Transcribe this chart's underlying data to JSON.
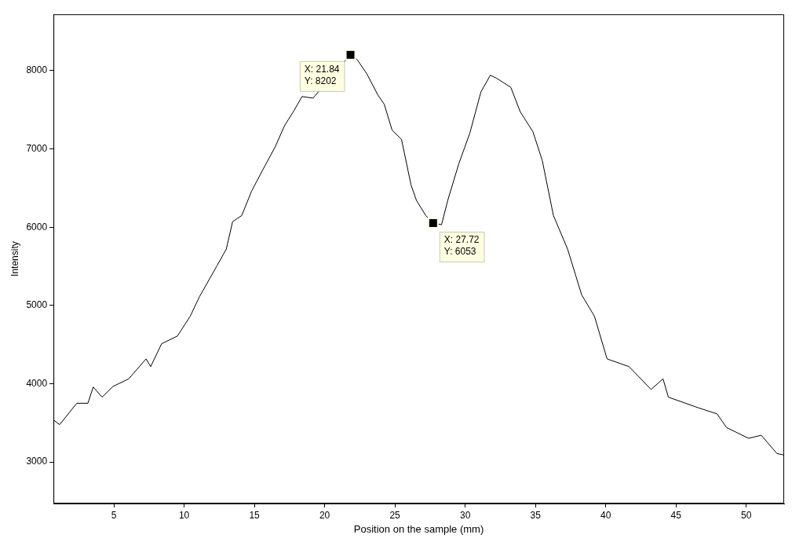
{
  "chart_data": {
    "type": "line",
    "xlabel": "Position on the sample (mm)",
    "ylabel": "Intensity",
    "xlim": [
      0.7,
      52.7
    ],
    "ylim": [
      2470,
      8720
    ],
    "xticks": [
      5,
      10,
      15,
      20,
      25,
      30,
      35,
      40,
      45,
      50
    ],
    "yticks": [
      3000,
      4000,
      5000,
      6000,
      7000,
      8000
    ],
    "grid": false,
    "legend": false,
    "marker": "none",
    "line_style": "solid",
    "series": [
      {
        "color": "#000000",
        "x": [
          0.7,
          1.14,
          2.36,
          3.15,
          3.53,
          4.16,
          4.94,
          6.06,
          7.29,
          7.62,
          8.4,
          9.52,
          10.43,
          11.1,
          12.33,
          13.0,
          13.45,
          14.1,
          14.8,
          15.6,
          16.48,
          17.15,
          17.83,
          18.39,
          19.17,
          21.42,
          21.84,
          22.33,
          23.0,
          23.79,
          24.24,
          24.8,
          25.47,
          26.15,
          26.53,
          27.2,
          27.72,
          28.32,
          28.76,
          29.55,
          30.33,
          31.12,
          31.79,
          32.24,
          33.25,
          33.92,
          34.82,
          35.49,
          36.28,
          37.29,
          38.29,
          39.2,
          40.1,
          41.66,
          43.23,
          44.08,
          44.46,
          46.59,
          47.93,
          48.6,
          50.17,
          51.07,
          52.19,
          52.7
        ],
        "values": [
          3537,
          3478,
          3751,
          3751,
          3958,
          3829,
          3966,
          4063,
          4317,
          4219,
          4512,
          4609,
          4862,
          5115,
          5505,
          5720,
          6071,
          6149,
          6461,
          6734,
          7026,
          7299,
          7493,
          7669,
          7649,
          8117,
          8202,
          8137,
          7961,
          7688,
          7571,
          7240,
          7123,
          6538,
          6343,
          6149,
          6053,
          6032,
          6343,
          6812,
          7201,
          7728,
          7942,
          7903,
          7786,
          7474,
          7221,
          6850,
          6149,
          5720,
          5135,
          4862,
          4317,
          4219,
          3927,
          4063,
          3829,
          3693,
          3615,
          3440,
          3303,
          3342,
          3108,
          3089
        ]
      }
    ],
    "annotations": [
      {
        "text": "X: 21.84\nY: 8202",
        "x": 21.84,
        "y": 8202
      },
      {
        "text": "X: 27.72\nY: 6053",
        "x": 27.72,
        "y": 6053
      }
    ]
  }
}
